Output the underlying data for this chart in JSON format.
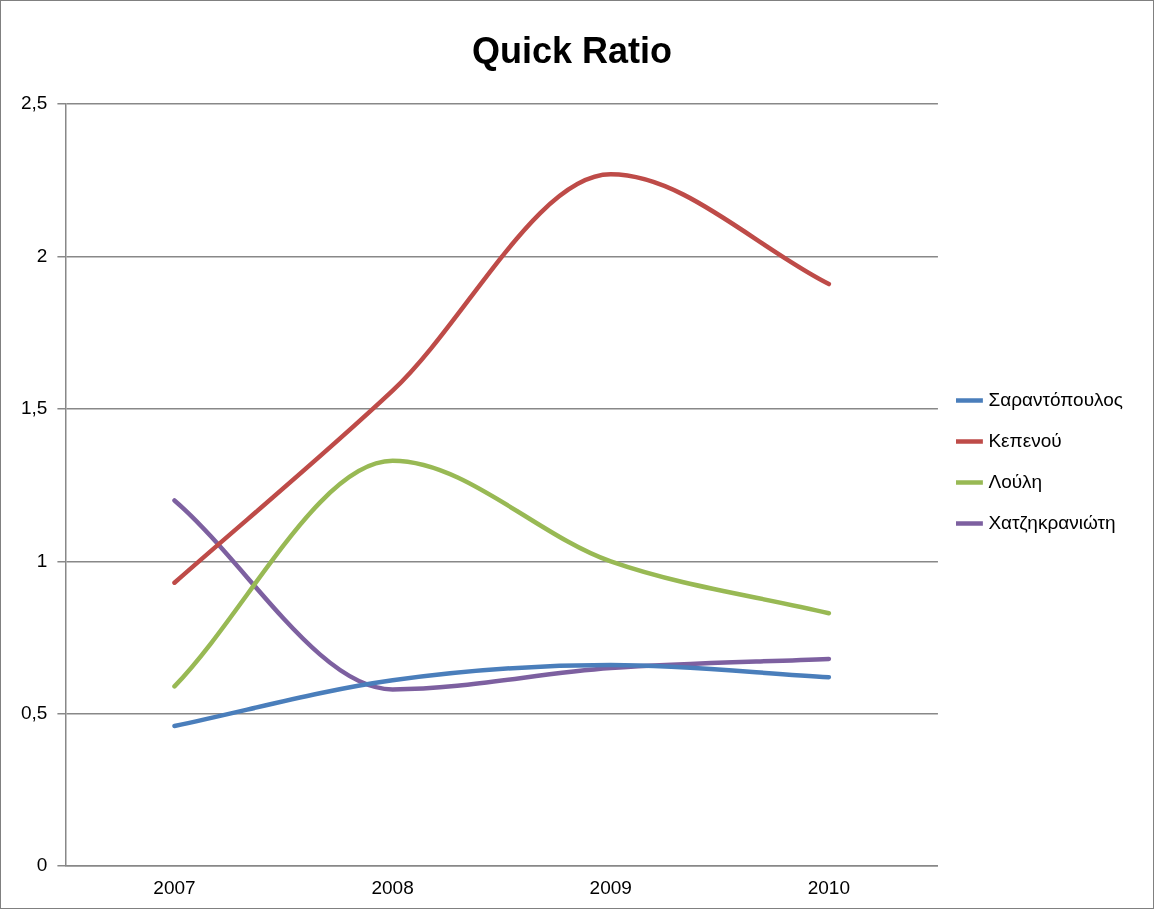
{
  "chart_data": {
    "type": "line",
    "title": "Quick Ratio",
    "categories": [
      "2007",
      "2008",
      "2009",
      "2010"
    ],
    "series": [
      {
        "name": "Σαραντόπουλος",
        "color": "#4a7ebb",
        "values": [
          0.46,
          0.61,
          0.66,
          0.62
        ]
      },
      {
        "name": "Κεπενού",
        "color": "#be4b48",
        "values": [
          0.93,
          1.56,
          2.27,
          1.91
        ]
      },
      {
        "name": "Λούλη",
        "color": "#98b954",
        "values": [
          0.59,
          1.33,
          1.0,
          0.83
        ]
      },
      {
        "name": "Χατζηκρανιώτη",
        "color": "#7d60a0",
        "values": [
          1.2,
          0.58,
          0.65,
          0.68
        ]
      }
    ],
    "ylim": [
      0,
      2.5
    ],
    "yticks": [
      0,
      {
        "value": 0.5,
        "label": "0,5"
      },
      1,
      {
        "value": 1.5,
        "label": "1,5"
      },
      2,
      {
        "value": 2.5,
        "label": "2,5"
      }
    ],
    "grid": "y",
    "legend": "right",
    "marker": "none",
    "line_style": "solid"
  }
}
